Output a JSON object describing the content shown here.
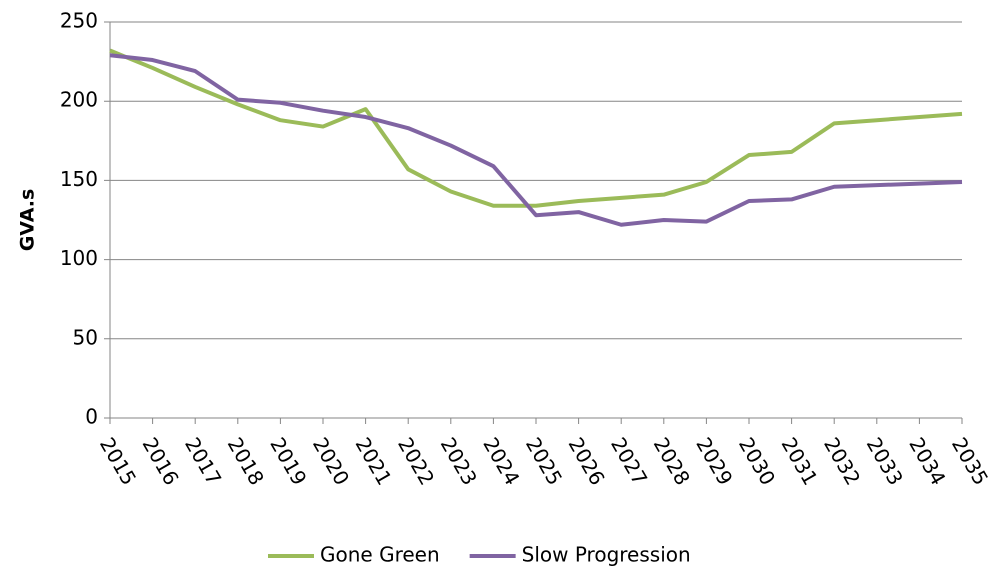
{
  "chart_data": {
    "type": "line",
    "y_label": "GVA.s",
    "x": [
      2015,
      2016,
      2017,
      2018,
      2019,
      2020,
      2021,
      2022,
      2023,
      2024,
      2025,
      2026,
      2027,
      2028,
      2029,
      2030,
      2031,
      2032,
      2033,
      2034,
      2035
    ],
    "xlim": [
      2015,
      2035
    ],
    "xticks": [
      2015,
      2016,
      2017,
      2018,
      2019,
      2020,
      2021,
      2022,
      2023,
      2024,
      2025,
      2026,
      2027,
      2028,
      2029,
      2030,
      2031,
      2032,
      2033,
      2034,
      2035
    ],
    "ylim": [
      0,
      250
    ],
    "yticks": [
      0,
      50,
      100,
      150,
      200,
      250
    ],
    "grid": true,
    "series": [
      {
        "name": "Gone Green",
        "color": "#9bbb59",
        "values": [
          232,
          221,
          209,
          198,
          188,
          184,
          195,
          157,
          143,
          134,
          134,
          137,
          139,
          141,
          149,
          166,
          168,
          186,
          188,
          190,
          192
        ]
      },
      {
        "name": "Slow Progression",
        "color": "#8064a2",
        "values": [
          229,
          226,
          219,
          201,
          199,
          194,
          190,
          183,
          172,
          159,
          128,
          130,
          122,
          125,
          124,
          137,
          138,
          146,
          147,
          148,
          149
        ]
      }
    ]
  }
}
